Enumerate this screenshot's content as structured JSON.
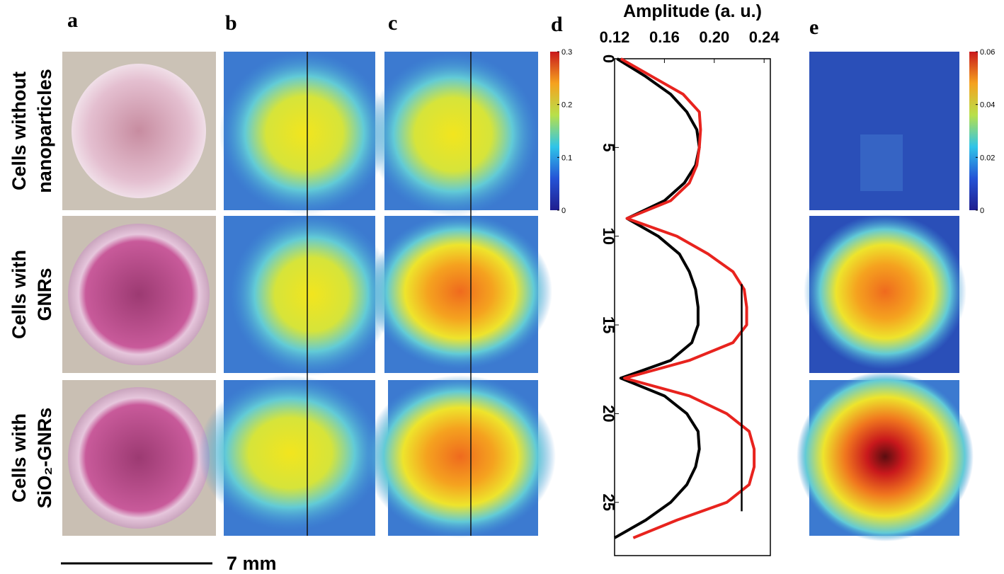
{
  "panels": {
    "labels": [
      "a",
      "b",
      "c",
      "d",
      "e"
    ]
  },
  "rows": [
    [
      "Cells without",
      "nanoparticles"
    ],
    [
      "Cells with",
      "GNRs"
    ],
    [
      "Cells with",
      "SiO₂-GNRs"
    ]
  ],
  "scale_bar": "7 mm",
  "colorbars": [
    {
      "lim": [
        0,
        0.3
      ],
      "ticks": [
        0,
        0.1,
        0.2,
        0.3
      ]
    },
    {
      "lim": [
        0,
        0.06
      ],
      "ticks": [
        0,
        0.02,
        0.04,
        0.06
      ]
    }
  ],
  "chart_data": {
    "type": "line",
    "x_label": "Amplitude (a. u.)",
    "y": [
      0,
      1,
      2,
      3,
      4,
      5,
      6,
      7,
      8,
      9,
      10,
      11,
      12,
      13,
      14,
      15,
      16,
      17,
      18,
      19,
      20,
      21,
      22,
      23,
      24,
      25,
      26,
      27
    ],
    "series": [
      {
        "color": "#000000",
        "values": [
          0.122,
          0.145,
          0.165,
          0.178,
          0.186,
          0.188,
          0.185,
          0.176,
          0.16,
          0.13,
          0.155,
          0.172,
          0.18,
          0.185,
          0.187,
          0.187,
          0.182,
          0.165,
          0.125,
          0.16,
          0.178,
          0.187,
          0.188,
          0.185,
          0.178,
          0.165,
          0.145,
          0.12
        ]
      },
      {
        "color": "#e8231e",
        "values": [
          0.125,
          0.15,
          0.175,
          0.188,
          0.189,
          0.188,
          0.186,
          0.18,
          0.165,
          0.13,
          0.17,
          0.195,
          0.215,
          0.224,
          0.226,
          0.226,
          0.215,
          0.18,
          0.128,
          0.18,
          0.21,
          0.228,
          0.232,
          0.232,
          0.228,
          0.21,
          0.17,
          0.135
        ]
      }
    ],
    "xlim": [
      0.12,
      0.245
    ],
    "xticks": [
      0.12,
      0.16,
      {
        "value": 0.2,
        "label": "0.20"
      },
      0.24
    ],
    "ylim": [
      0,
      28
    ],
    "yticks": [
      0,
      5,
      10,
      15,
      20,
      25
    ],
    "reference_line": {
      "x": 0.222,
      "y": [
        12.7,
        25.5
      ]
    }
  }
}
